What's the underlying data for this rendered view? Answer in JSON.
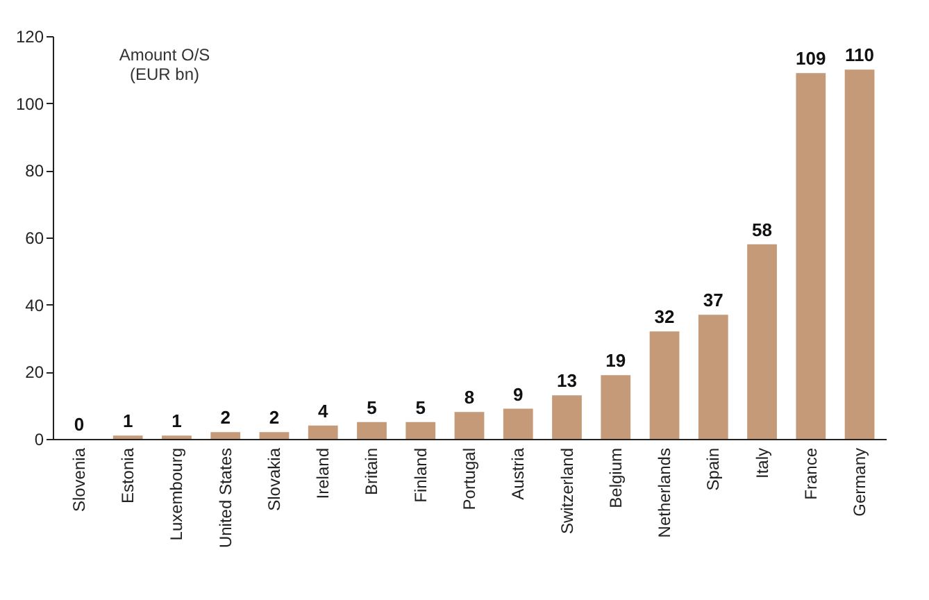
{
  "chart_data": {
    "type": "bar",
    "ylabel": "Amount O/S\n(EUR bn)",
    "categories": [
      "Slovenia",
      "Estonia",
      "Luxembourg",
      "United States",
      "Slovakia",
      "Ireland",
      "Britain",
      "Finland",
      "Portugal",
      "Austria",
      "Switzerland",
      "Belgium",
      "Netherlands",
      "Spain",
      "Italy",
      "France",
      "Germany"
    ],
    "values": [
      0,
      1,
      1,
      2,
      2,
      4,
      5,
      5,
      8,
      9,
      13,
      19,
      32,
      37,
      58,
      109,
      110
    ],
    "color": "#c49a78",
    "ylim": [
      0,
      120
    ],
    "yticks": [
      0,
      20,
      40,
      60,
      80,
      100,
      120
    ],
    "grid": false,
    "data_labels": true
  }
}
